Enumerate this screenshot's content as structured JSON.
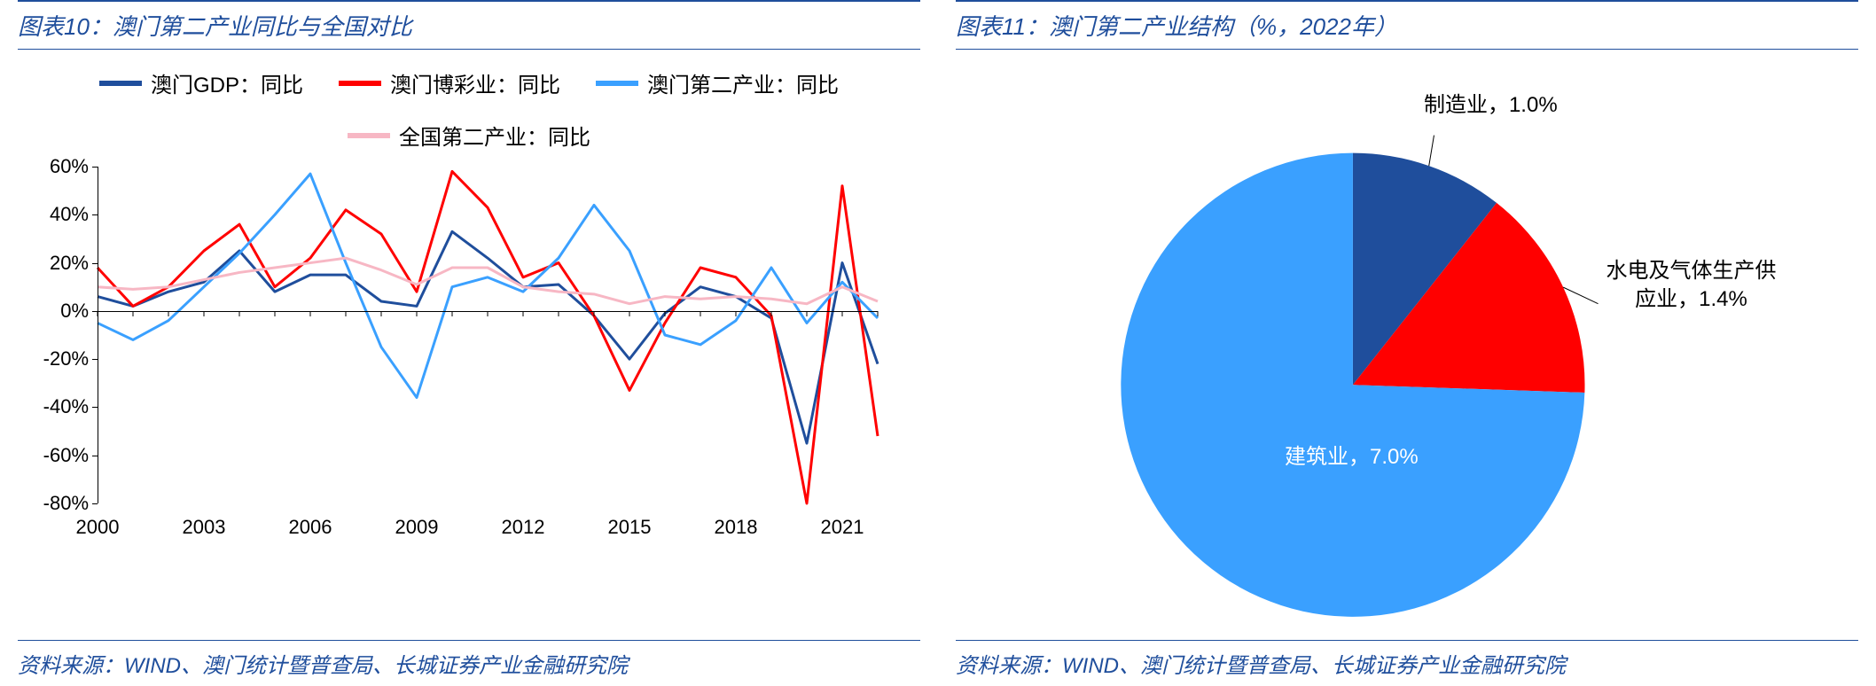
{
  "left": {
    "title": "图表10：澳门第二产业同比与全国对比",
    "source": "资料来源：WIND、澳门统计暨普查局、长城证券产业金融研究院",
    "chart": {
      "type": "line",
      "background_color": "#ffffff",
      "ylim": [
        -80,
        60
      ],
      "ytick_step": 20,
      "ytick_suffix": "%",
      "xlim": [
        2000,
        2022
      ],
      "xticks": [
        2000,
        2003,
        2006,
        2009,
        2012,
        2015,
        2018,
        2021
      ],
      "axis_color": "#000000",
      "tick_fontsize": 22,
      "legend_fontsize": 24,
      "line_width": 3,
      "series": [
        {
          "name": "澳门GDP：同比",
          "color": "#1f4e9c",
          "values": [
            6,
            2,
            8,
            12,
            25,
            8,
            15,
            15,
            4,
            2,
            33,
            22,
            10,
            11,
            -2,
            -20,
            -1,
            10,
            6,
            -3,
            -55,
            20,
            -22
          ]
        },
        {
          "name": "澳门博彩业：同比",
          "color": "#ff0000",
          "values": [
            18,
            2,
            10,
            25,
            36,
            10,
            22,
            42,
            32,
            8,
            58,
            43,
            14,
            20,
            -2,
            -33,
            -5,
            18,
            14,
            -2,
            -80,
            52,
            -52
          ]
        },
        {
          "name": "澳门第二产业：同比",
          "color": "#3aa0ff",
          "values": [
            -5,
            -12,
            -4,
            10,
            24,
            40,
            57,
            20,
            -15,
            -36,
            10,
            14,
            8,
            22,
            44,
            25,
            -10,
            -14,
            -4,
            18,
            -5,
            12,
            -3
          ]
        },
        {
          "name": "全国第二产业：同比",
          "color": "#f7b7c4",
          "values": [
            10,
            9,
            10,
            13,
            16,
            18,
            20,
            22,
            17,
            11,
            18,
            18,
            10,
            8,
            7,
            3,
            6,
            5,
            6,
            5,
            3,
            10,
            4
          ]
        }
      ]
    }
  },
  "right": {
    "title": "图表11：澳门第二产业结构（%，2022年）",
    "source": "资料来源：WIND、澳门统计暨普查局、长城证券产业金融研究院",
    "chart": {
      "type": "pie",
      "background_color": "#ffffff",
      "label_fontsize": 24,
      "slices": [
        {
          "name": "制造业",
          "value": 1.0,
          "label": "制造业，1.0%",
          "color": "#1f4e9c"
        },
        {
          "name": "水电及气体生产供应业",
          "value": 1.4,
          "label": "水电及气体生产供应业，1.4%",
          "color": "#ff0000"
        },
        {
          "name": "建筑业",
          "value": 7.0,
          "label": "建筑业，7.0%",
          "color": "#3aa0ff"
        }
      ]
    }
  }
}
